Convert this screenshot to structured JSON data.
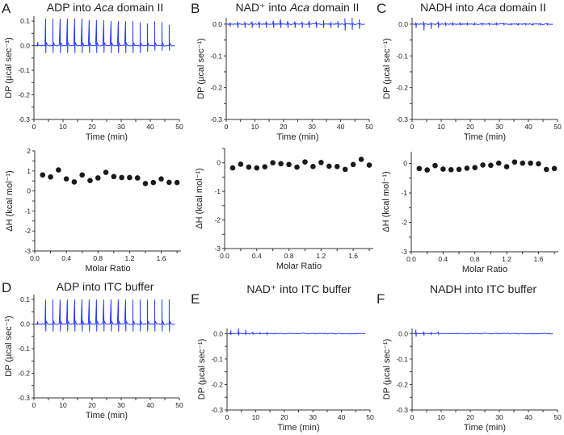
{
  "colors": {
    "trace": "#2a3cff",
    "dots": "#1a1a1a",
    "axis": "#333333"
  },
  "chart_data": [
    {
      "id": "A-top",
      "letter": "A",
      "type": "line",
      "title": [
        "ADP into ",
        "Aca",
        " domain II"
      ],
      "xlabel": "Time (min)",
      "ylabel": "DP (µcal sec⁻¹)",
      "xlim": [
        0,
        50
      ],
      "ylim": [
        -0.3,
        0.12
      ],
      "xticks": [
        0,
        10,
        20,
        30,
        40,
        50
      ],
      "xtick_labels": [
        "0",
        "10",
        "20",
        "30",
        "40",
        "50"
      ],
      "yticks": [
        0.1,
        0,
        -0.1,
        -0.2,
        -0.3
      ],
      "ytick_labels": [
        "0.1",
        "0.0",
        "-0.1",
        "-0.2",
        "-0.3"
      ],
      "injections_min": [
        1.3,
        4,
        6.5,
        9,
        11.5,
        14,
        16.5,
        19,
        21.5,
        24,
        26.5,
        29,
        31.5,
        34,
        36.5,
        39,
        41.5,
        44,
        46.5
      ],
      "spike_up": [
        0.015,
        0.11,
        0.11,
        0.11,
        0.11,
        0.11,
        0.11,
        0.105,
        0.105,
        0.105,
        0.1,
        0.1,
        0.1,
        0.1,
        0.095,
        0.09,
        0.1,
        0.095,
        0.085
      ],
      "spike_down": [
        0,
        -0.03,
        -0.03,
        -0.03,
        -0.03,
        -0.03,
        -0.03,
        -0.03,
        -0.03,
        -0.03,
        -0.03,
        -0.03,
        -0.03,
        -0.03,
        -0.03,
        -0.025,
        -0.02,
        -0.02,
        -0.02
      ],
      "end_min": 48.5
    },
    {
      "id": "B-top",
      "letter": "B",
      "type": "line",
      "title": [
        "NAD⁺ into ",
        "Aca",
        " domain II"
      ],
      "xlabel": "Time (min)",
      "ylabel": "DP (µcal sec⁻¹)",
      "xlim": [
        0,
        50
      ],
      "ylim": [
        -0.3,
        0.02
      ],
      "xticks": [
        0,
        10,
        20,
        30,
        40,
        50
      ],
      "xtick_labels": [
        "0",
        "10",
        "20",
        "30",
        "40",
        "50"
      ],
      "yticks": [
        0,
        -0.1,
        -0.2,
        -0.3
      ],
      "ytick_labels": [
        "0.0",
        "-0.1",
        "-0.2",
        "-0.3"
      ],
      "injections_min": [
        1.3,
        4,
        6.5,
        9,
        11.5,
        14,
        16.5,
        19,
        21.5,
        24,
        26.5,
        29,
        31.5,
        34,
        36.5,
        39,
        41.5,
        44,
        46.5
      ],
      "spike_up": [
        0.005,
        0.008,
        0.008,
        0.008,
        0.008,
        0.008,
        0.01,
        0.015,
        0.01,
        0.008,
        0.008,
        0.01,
        0.008,
        0.012,
        0.008,
        0.01,
        0.018,
        0.02,
        0.015
      ],
      "spike_down": [
        -0.008,
        -0.012,
        -0.012,
        -0.012,
        -0.012,
        -0.012,
        -0.012,
        -0.012,
        -0.012,
        -0.012,
        -0.012,
        -0.012,
        -0.012,
        -0.012,
        -0.012,
        -0.012,
        -0.02,
        -0.018,
        -0.015
      ],
      "end_min": 48.5
    },
    {
      "id": "C-top",
      "letter": "C",
      "type": "line",
      "title": [
        "NADH into ",
        "Aca",
        " domain II"
      ],
      "xlabel": "Time (min)",
      "ylabel": "DP (µcal sec⁻¹)",
      "xlim": [
        0,
        50
      ],
      "ylim": [
        -0.3,
        0.02
      ],
      "xticks": [
        0,
        10,
        20,
        30,
        40,
        50
      ],
      "xtick_labels": [
        "0",
        "10",
        "20",
        "30",
        "40",
        "50"
      ],
      "yticks": [
        0,
        -0.1,
        -0.2,
        -0.3
      ],
      "ytick_labels": [
        "0.0",
        "-0.1",
        "-0.2",
        "-0.3"
      ],
      "injections_min": [
        1.3,
        4,
        6.5,
        9,
        11.5,
        14,
        16.5,
        19,
        21.5,
        24,
        26.5,
        29,
        31.5,
        34,
        36.5,
        39,
        41.5,
        44,
        46.5
      ],
      "spike_up": [
        0.005,
        0.008,
        0.006,
        0.006,
        0.004,
        0.004,
        0.004,
        0.003,
        0.003,
        0.003,
        0.003,
        0.003,
        0.003,
        0.003,
        0.003,
        0.003,
        0.003,
        0.003,
        0.003
      ],
      "spike_down": [
        -0.012,
        -0.02,
        -0.015,
        -0.012,
        -0.006,
        -0.005,
        -0.004,
        -0.004,
        -0.004,
        -0.004,
        -0.004,
        -0.004,
        -0.004,
        -0.004,
        -0.004,
        -0.004,
        -0.004,
        -0.004,
        -0.004
      ],
      "end_min": 48.5
    },
    {
      "id": "A-bot",
      "type": "scatter",
      "xlabel": "Molar Ratio",
      "ylabel": "ΔH (kcal mol⁻¹)",
      "xlim": [
        0,
        1.85
      ],
      "ylim": [
        -3,
        2
      ],
      "xticks": [
        0,
        0.4,
        0.8,
        1.2,
        1.6
      ],
      "xtick_labels": [
        "0.0",
        "0.4",
        "0.8",
        "1.2",
        "1.6"
      ],
      "yticks": [
        2,
        1,
        0,
        -1,
        -2,
        -3
      ],
      "ytick_labels": [
        "2",
        "1",
        "0",
        "-1",
        "-2",
        "-3"
      ],
      "x": [
        0.1,
        0.2,
        0.3,
        0.4,
        0.5,
        0.6,
        0.7,
        0.8,
        0.9,
        1.0,
        1.1,
        1.2,
        1.3,
        1.4,
        1.5,
        1.6,
        1.7,
        1.8
      ],
      "y": [
        0.8,
        0.7,
        1.05,
        0.6,
        0.45,
        0.8,
        0.52,
        0.65,
        0.93,
        0.72,
        0.67,
        0.67,
        0.65,
        0.37,
        0.42,
        0.6,
        0.43,
        0.42
      ]
    },
    {
      "id": "B-bot",
      "type": "scatter",
      "xlabel": "Molar Ratio",
      "ylabel": "ΔH (kcal mol⁻¹)",
      "xlim": [
        0,
        1.85
      ],
      "ylim": [
        -3,
        0.5
      ],
      "xticks": [
        0,
        0.4,
        0.8,
        1.2,
        1.6
      ],
      "xtick_labels": [
        "0.0",
        "0.4",
        "0.8",
        "1.2",
        "1.6"
      ],
      "yticks": [
        0,
        -1,
        -2,
        -3
      ],
      "ytick_labels": [
        "0",
        "-1",
        "-2",
        "-3"
      ],
      "x": [
        0.1,
        0.2,
        0.3,
        0.4,
        0.5,
        0.6,
        0.7,
        0.8,
        0.9,
        1.0,
        1.1,
        1.2,
        1.3,
        1.4,
        1.5,
        1.6,
        1.7,
        1.8
      ],
      "y": [
        -0.18,
        -0.05,
        -0.15,
        -0.18,
        -0.14,
        0,
        -0.03,
        -0.06,
        -0.15,
        0.03,
        -0.13,
        0.01,
        -0.12,
        -0.13,
        -0.23,
        -0.06,
        0.12,
        -0.08
      ]
    },
    {
      "id": "C-bot",
      "type": "scatter",
      "xlabel": "Molar Ratio",
      "ylabel": "ΔH (kcal mol⁻¹)",
      "xlim": [
        0,
        1.85
      ],
      "ylim": [
        -3,
        0.4
      ],
      "xticks": [
        0,
        0.4,
        0.8,
        1.2,
        1.6
      ],
      "xtick_labels": [
        "0.0",
        "0.4",
        "0.8",
        "1.2",
        "1.6"
      ],
      "yticks": [
        0,
        -1,
        -2,
        -3
      ],
      "ytick_labels": [
        "0",
        "-1",
        "-2",
        "-3"
      ],
      "x": [
        0.1,
        0.2,
        0.3,
        0.4,
        0.5,
        0.6,
        0.7,
        0.8,
        0.9,
        1.0,
        1.1,
        1.2,
        1.3,
        1.4,
        1.5,
        1.6,
        1.7,
        1.8
      ],
      "y": [
        -0.17,
        -0.22,
        -0.07,
        -0.19,
        -0.21,
        -0.2,
        -0.16,
        -0.14,
        -0.05,
        -0.06,
        0.01,
        -0.11,
        0.05,
        0.01,
        0.01,
        -0.01,
        -0.2,
        -0.17
      ]
    },
    {
      "id": "D",
      "letter": "D",
      "type": "line",
      "title": [
        "ADP into ITC buffer",
        "",
        ""
      ],
      "xlabel": "Time (min)",
      "ylabel": "DP (µcal sec⁻¹)",
      "xlim": [
        0,
        50
      ],
      "ylim": [
        -0.3,
        0.12
      ],
      "xticks": [
        0,
        10,
        20,
        30,
        40,
        50
      ],
      "xtick_labels": [
        "0",
        "10",
        "20",
        "30",
        "40",
        "50"
      ],
      "yticks": [
        0.1,
        0,
        -0.1,
        -0.2,
        -0.3
      ],
      "ytick_labels": [
        "0.1",
        "0.0",
        "-0.1",
        "-0.2",
        "-0.3"
      ],
      "injections_min": [
        1.3,
        4,
        6.5,
        9,
        11.5,
        14,
        16.5,
        19,
        21.5,
        24,
        26.5,
        29,
        31.5,
        34,
        36.5,
        39,
        41.5,
        44,
        46.5
      ],
      "spike_up": [
        0.01,
        0.1,
        0.1,
        0.1,
        0.1,
        0.1,
        0.1,
        0.1,
        0.1,
        0.1,
        0.1,
        0.1,
        0.1,
        0.1,
        0.1,
        0.1,
        0.1,
        0.1,
        0.1
      ],
      "spike_down": [
        0,
        -0.03,
        -0.03,
        -0.03,
        -0.03,
        -0.03,
        -0.03,
        -0.03,
        -0.03,
        -0.03,
        -0.03,
        -0.03,
        -0.03,
        -0.03,
        -0.03,
        -0.03,
        -0.03,
        -0.03,
        -0.03
      ],
      "end_min": 48.5
    },
    {
      "id": "E",
      "letter": "E",
      "type": "line",
      "title": [
        "NAD⁺ into ITC buffer",
        "",
        ""
      ],
      "xlabel": "Time (min)",
      "ylabel": "DP (µcal sec⁻¹)",
      "xlim": [
        0,
        50
      ],
      "ylim": [
        -0.3,
        0.02
      ],
      "xticks": [
        0,
        10,
        20,
        30,
        40,
        50
      ],
      "xtick_labels": [
        "0",
        "10",
        "20",
        "30",
        "40",
        "50"
      ],
      "yticks": [
        0,
        -0.1,
        -0.2,
        -0.3
      ],
      "ytick_labels": [
        "0.0",
        "-0.1",
        "-0.2",
        "-0.3"
      ],
      "injections_min": [
        1.3,
        4,
        6.5,
        9,
        11.5,
        14
      ],
      "spike_up": [
        0.012,
        0.02,
        0.015,
        0.005,
        0.004,
        0.004
      ],
      "spike_down": [
        -0.005,
        -0.008,
        -0.006,
        -0.004,
        -0.003,
        -0.003
      ],
      "end_min": 48.5
    },
    {
      "id": "F",
      "letter": "F",
      "type": "line",
      "title": [
        "NADH into ITC buffer",
        "",
        ""
      ],
      "xlabel": "Time (min)",
      "ylabel": "DP (µcal sec⁻¹)",
      "xlim": [
        0,
        50
      ],
      "ylim": [
        -0.3,
        0.02
      ],
      "xticks": [
        0,
        10,
        20,
        30,
        40,
        50
      ],
      "xtick_labels": [
        "0",
        "10",
        "20",
        "30",
        "40",
        "50"
      ],
      "yticks": [
        0,
        -0.1,
        -0.2,
        -0.3
      ],
      "ytick_labels": [
        "0.0",
        "-0.1",
        "-0.2",
        "-0.3"
      ],
      "injections_min": [
        1.3,
        4,
        6.5,
        9
      ],
      "spike_up": [
        0.015,
        0.008,
        0.006,
        0.005
      ],
      "spike_down": [
        -0.012,
        -0.008,
        -0.006,
        -0.004
      ],
      "end_min": 48.5
    }
  ]
}
